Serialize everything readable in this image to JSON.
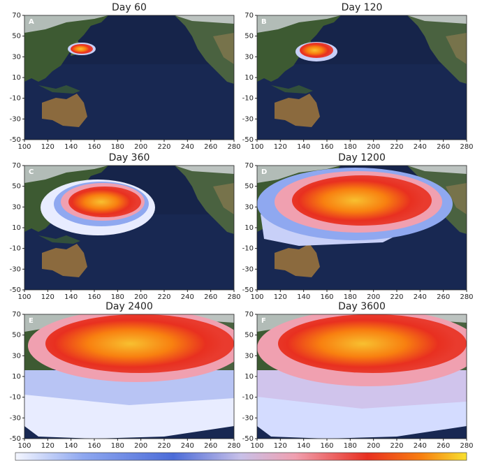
{
  "chart_data": [
    {
      "type": "map",
      "title": "Day 60",
      "panel_label": "A",
      "xlim": [
        100,
        280
      ],
      "ylim": [
        -50,
        70
      ],
      "xticks": [
        100,
        120,
        140,
        160,
        180,
        200,
        220,
        240,
        260,
        280
      ],
      "yticks": [
        -50,
        -30,
        -10,
        10,
        30,
        50,
        70
      ]
    },
    {
      "type": "map",
      "title": "Day 120",
      "panel_label": "B",
      "xlim": [
        100,
        280
      ],
      "ylim": [
        -50,
        70
      ],
      "xticks": [
        100,
        120,
        140,
        160,
        180,
        200,
        220,
        240,
        260,
        280
      ],
      "yticks": [
        -50,
        -30,
        -10,
        10,
        30,
        50,
        70
      ]
    },
    {
      "type": "map",
      "title": "Day 360",
      "panel_label": "C",
      "xlim": [
        100,
        280
      ],
      "ylim": [
        -50,
        70
      ],
      "xticks": [
        100,
        120,
        140,
        160,
        180,
        200,
        220,
        240,
        260,
        280
      ],
      "yticks": [
        -50,
        -30,
        -10,
        10,
        30,
        50,
        70
      ]
    },
    {
      "type": "map",
      "title": "Day 1200",
      "panel_label": "D",
      "xlim": [
        100,
        280
      ],
      "ylim": [
        -50,
        70
      ],
      "xticks": [
        100,
        120,
        140,
        160,
        180,
        200,
        220,
        240,
        260,
        280
      ],
      "yticks": [
        -50,
        -30,
        -10,
        10,
        30,
        50,
        70
      ]
    },
    {
      "type": "map",
      "title": "Day 2400",
      "panel_label": "E",
      "xlim": [
        100,
        280
      ],
      "ylim": [
        -50,
        70
      ],
      "xticks": [
        100,
        120,
        140,
        160,
        180,
        200,
        220,
        240,
        260,
        280
      ],
      "yticks": [
        -50,
        -30,
        -10,
        10,
        30,
        50,
        70
      ]
    },
    {
      "type": "map",
      "title": "Day 3600",
      "panel_label": "F",
      "xlim": [
        100,
        280
      ],
      "ylim": [
        -50,
        70
      ],
      "xticks": [
        100,
        120,
        140,
        160,
        180,
        200,
        220,
        240,
        260,
        280
      ],
      "yticks": [
        -50,
        -30,
        -10,
        10,
        30,
        50,
        70
      ]
    }
  ]
}
